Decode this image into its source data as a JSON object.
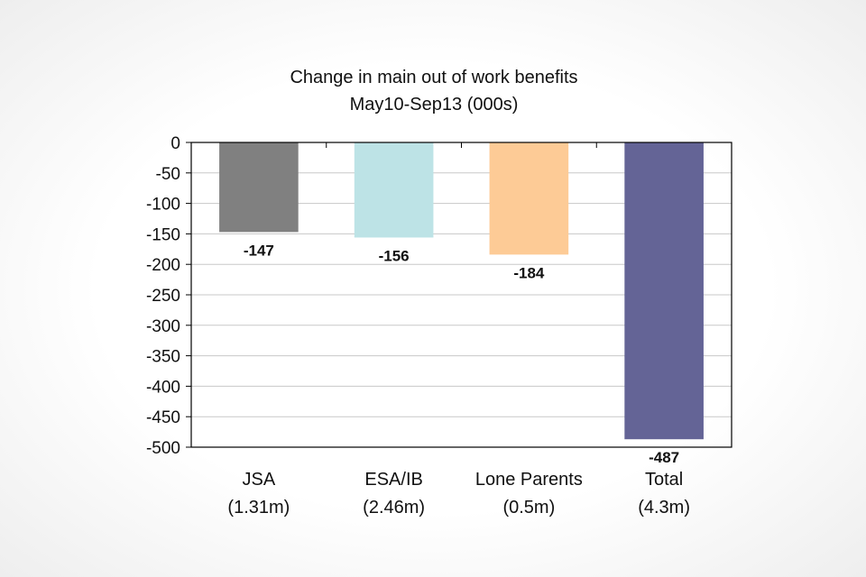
{
  "chart_data": {
    "type": "bar",
    "title": "Change in main out of work benefits",
    "subtitle": "May10-Sep13 (000s)",
    "xlabel": "",
    "ylabel": "",
    "ylim": [
      -500,
      0
    ],
    "yticks": [
      "0",
      "-50",
      "-100",
      "-150",
      "-200",
      "-250",
      "-300",
      "-350",
      "-400",
      "-450",
      "-500"
    ],
    "ytick_values": [
      0,
      -50,
      -100,
      -150,
      -200,
      -250,
      -300,
      -350,
      -400,
      -450,
      -500
    ],
    "grid": true,
    "legend": "none",
    "categories": [
      {
        "name": "JSA",
        "sub": "(1.31m)"
      },
      {
        "name": "ESA/IB",
        "sub": "(2.46m)"
      },
      {
        "name": "Lone Parents",
        "sub": "(0.5m)"
      },
      {
        "name": "Total",
        "sub": "(4.3m)"
      }
    ],
    "values": [
      -147,
      -156,
      -184,
      -487
    ],
    "value_labels": [
      "-147",
      "-156",
      "-184",
      "-487"
    ],
    "colors": [
      "#808080",
      "#bde3e6",
      "#fdcb96",
      "#646496"
    ]
  }
}
